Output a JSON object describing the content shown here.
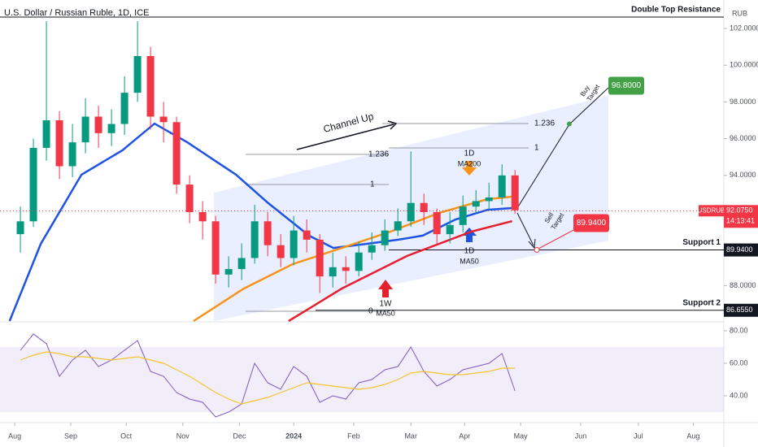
{
  "chart_data": [
    {
      "type": "candlestick",
      "title": "U.S. Dollar / Russian Ruble, 1D, ICE",
      "currency": "RUB",
      "xlim": [
        -0.26,
        12.53
      ],
      "xticks": [
        {
          "value": 0,
          "label": "Aug"
        },
        {
          "value": 0.99,
          "label": "Sep"
        },
        {
          "value": 1.97,
          "label": "Oct"
        },
        {
          "value": 2.97,
          "label": "Nov"
        },
        {
          "value": 3.97,
          "label": "Dec"
        },
        {
          "value": 4.93,
          "label": "2024"
        },
        {
          "value": 5.99,
          "label": "Feb"
        },
        {
          "value": 7.0,
          "label": "Mar"
        },
        {
          "value": 7.95,
          "label": "Apr"
        },
        {
          "value": 8.94,
          "label": "May"
        },
        {
          "value": 10.0,
          "label": "Jun"
        },
        {
          "value": 11.02,
          "label": "Jul"
        },
        {
          "value": 11.99,
          "label": "Aug"
        }
      ],
      "ylim": [
        86.07,
        103.33
      ],
      "yticks": [
        {
          "value": 88,
          "label": "88.0000"
        },
        {
          "value": 94,
          "label": "94.0000"
        },
        {
          "value": 96,
          "label": "96.0000"
        },
        {
          "value": 98,
          "label": "98.0000"
        },
        {
          "value": 100,
          "label": "100.0000"
        },
        {
          "value": 102,
          "label": "102.0000"
        }
      ],
      "up_color": "#089981",
      "down_color": "#f23645",
      "x": [
        0.1,
        0.33,
        0.56,
        0.79,
        1.02,
        1.25,
        1.48,
        1.71,
        1.94,
        2.17,
        2.4,
        2.63,
        2.86,
        3.09,
        3.32,
        3.55,
        3.78,
        4.01,
        4.24,
        4.47,
        4.7,
        4.93,
        5.16,
        5.39,
        5.62,
        5.85,
        6.08,
        6.31,
        6.54,
        6.77,
        7.0,
        7.23,
        7.46,
        7.69,
        7.92,
        8.15,
        8.38,
        8.61,
        8.84
      ],
      "open": [
        90.8,
        91.5,
        95.5,
        97.0,
        94.5,
        95.8,
        97.2,
        96.3,
        96.8,
        98.5,
        100.5,
        97.2,
        96.9,
        93.5,
        92.0,
        91.5,
        88.6,
        88.9,
        89.5,
        91.5,
        90.2,
        89.5,
        91.0,
        90.5,
        88.5,
        89.0,
        88.8,
        89.8,
        90.2,
        91.0,
        91.5,
        92.5,
        92.0,
        90.8,
        91.3,
        92.3,
        92.6,
        92.8,
        94.0
      ],
      "high": [
        92.3,
        96.0,
        102.4,
        97.5,
        96.8,
        98.2,
        97.8,
        97.6,
        99.4,
        102.4,
        101.0,
        98.0,
        97.2,
        94.0,
        92.6,
        91.8,
        89.6,
        90.3,
        92.4,
        92.0,
        90.8,
        91.8,
        91.6,
        90.8,
        89.8,
        89.6,
        90.4,
        90.9,
        91.6,
        92.2,
        95.3,
        93.0,
        92.2,
        92.0,
        92.9,
        93.2,
        93.6,
        94.6,
        94.3
      ],
      "low": [
        89.8,
        91.2,
        94.8,
        93.8,
        93.9,
        95.2,
        95.5,
        95.6,
        96.2,
        98.0,
        96.5,
        95.8,
        93.0,
        91.4,
        90.5,
        88.1,
        87.9,
        88.3,
        89.2,
        89.6,
        89.0,
        89.1,
        89.8,
        87.6,
        87.9,
        88.1,
        88.5,
        89.4,
        89.9,
        90.7,
        91.2,
        91.3,
        90.2,
        90.3,
        90.9,
        91.9,
        92.1,
        92.4,
        91.9
      ],
      "close": [
        91.5,
        95.5,
        97.0,
        94.5,
        95.8,
        97.2,
        96.3,
        96.8,
        98.5,
        100.5,
        97.2,
        96.9,
        93.5,
        92.0,
        91.5,
        88.6,
        88.9,
        89.5,
        91.5,
        90.2,
        89.5,
        91.0,
        90.5,
        88.5,
        89.0,
        88.8,
        89.8,
        90.2,
        91.0,
        91.5,
        92.5,
        92.0,
        90.8,
        91.3,
        92.3,
        92.6,
        92.8,
        94.0,
        92.1
      ],
      "series": [
        {
          "label": [
            "1D",
            "MA50"
          ],
          "color": "#1e53e5",
          "x": [
            -0.09,
            0.46,
            1.18,
            1.9,
            2.47,
            3.05,
            3.91,
            4.48,
            5.2,
            5.63,
            6.21,
            6.78,
            7.21,
            7.79,
            8.36,
            8.79
          ],
          "values": [
            86.07,
            90.27,
            94.04,
            95.36,
            96.82,
            95.8,
            94.04,
            92.49,
            90.72,
            90.05,
            90.27,
            90.5,
            90.72,
            91.6,
            92.13,
            92.22
          ]
        },
        {
          "label": [
            "1D",
            "MA200"
          ],
          "color": "#f7931a",
          "x": [
            3.16,
            4.05,
            4.91,
            5.78,
            6.64,
            7.5,
            8.36,
            8.79
          ],
          "values": [
            86.07,
            87.84,
            89.17,
            90.05,
            90.94,
            91.96,
            92.71,
            92.84
          ]
        },
        {
          "label": [
            "1W",
            "MA50"
          ],
          "color": "#e5202f",
          "x": [
            4.84,
            5.78,
            6.93,
            8.07,
            8.79
          ],
          "values": [
            86.07,
            87.84,
            89.61,
            90.94,
            91.51
          ]
        }
      ],
      "annotations": [
        "Channel Up",
        "1.236",
        "1",
        "1.236",
        "1",
        "0"
      ],
      "levels": [
        {
          "label": "Double Top Resistance",
          "value": 102.62
        },
        {
          "label": "Support 1",
          "value": 89.94,
          "value_label": "89.9400"
        },
        {
          "label": "Support 2",
          "value": 86.655,
          "value_label": "86.6550"
        }
      ],
      "targets": [
        {
          "label": [
            "Buy",
            "Target"
          ],
          "value": 96.8,
          "value_label": "96.8000",
          "color": "#43a047"
        },
        {
          "label": [
            "Sell",
            "Target"
          ],
          "value": 89.94,
          "value_label": "89.9400",
          "color": "#f23645"
        }
      ],
      "last_price": {
        "symbol": "USDRUB",
        "value": 92.075,
        "value_label": "92.0750",
        "countdown": "14:13:41",
        "color": "#f23645"
      }
    },
    {
      "type": "line",
      "ylim": [
        23.5,
        84.5
      ],
      "yticks": [
        {
          "value": 40,
          "label": "40.00"
        },
        {
          "value": 60,
          "label": "60.00"
        },
        {
          "value": 80,
          "label": "80.00"
        }
      ],
      "band": [
        30,
        70
      ],
      "band_color": "#7e57c2",
      "x": [
        0.1,
        0.33,
        0.56,
        0.79,
        1.02,
        1.25,
        1.48,
        1.71,
        1.94,
        2.17,
        2.4,
        2.63,
        2.86,
        3.09,
        3.32,
        3.55,
        3.78,
        4.01,
        4.24,
        4.47,
        4.7,
        4.93,
        5.16,
        5.39,
        5.62,
        5.85,
        6.08,
        6.31,
        6.54,
        6.77,
        7.0,
        7.23,
        7.46,
        7.69,
        7.92,
        8.15,
        8.38,
        8.61,
        8.84
      ],
      "series": [
        {
          "color": "#7e57c2",
          "values": [
            68,
            78,
            72,
            52,
            62,
            68,
            58,
            62,
            68,
            74,
            55,
            52,
            42,
            38,
            36,
            27,
            30,
            35,
            60,
            48,
            44,
            58,
            52,
            36,
            40,
            38,
            48,
            50,
            56,
            58,
            70,
            55,
            46,
            50,
            56,
            58,
            60,
            66,
            43
          ]
        },
        {
          "color": "#f4c430",
          "values": [
            62,
            65,
            67,
            66,
            64,
            64,
            63,
            62,
            63,
            64,
            62,
            60,
            56,
            52,
            47,
            42,
            38,
            35,
            37,
            39,
            42,
            45,
            48,
            47,
            46,
            45,
            44,
            45,
            47,
            50,
            54,
            55,
            54,
            53,
            53,
            54,
            55,
            57,
            57
          ]
        }
      ]
    }
  ]
}
